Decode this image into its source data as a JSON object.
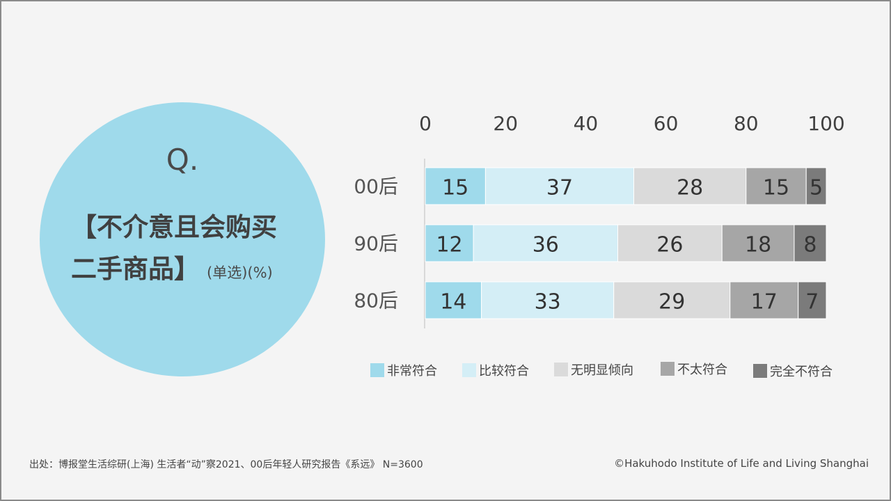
{
  "question": {
    "label": "Q.",
    "line1": "【不介意且会购买",
    "line2": "二手商品】",
    "note": "(单选)(%)"
  },
  "chart_data": {
    "type": "bar",
    "orientation": "horizontal",
    "stacked": true,
    "x_ticks": [
      "0",
      "20",
      "40",
      "60",
      "80",
      "100"
    ],
    "xlim": [
      0,
      100
    ],
    "categories": [
      "00后",
      "90后",
      "80后"
    ],
    "series": [
      {
        "name": "非常符合",
        "color": "#9fdaeb",
        "values": [
          15,
          12,
          14
        ]
      },
      {
        "name": "比较符合",
        "color": "#d4eef6",
        "values": [
          37,
          36,
          33
        ]
      },
      {
        "name": "无明显倾向",
        "color": "#dadada",
        "values": [
          28,
          26,
          29
        ]
      },
      {
        "name": "不太符合",
        "color": "#a6a6a6",
        "values": [
          15,
          18,
          17
        ]
      },
      {
        "name": "完全不符合",
        "color": "#7b7b7b",
        "values": [
          5,
          8,
          7
        ]
      }
    ],
    "legend_position": "bottom",
    "grid": false
  },
  "footer": {
    "source": "出处：博报堂生活综研(上海) 生活者“动”察2021、00后年轻人研究报告《系远》 N=3600",
    "copyright": "©Hakuhodo Institute of Life and Living Shanghai"
  }
}
